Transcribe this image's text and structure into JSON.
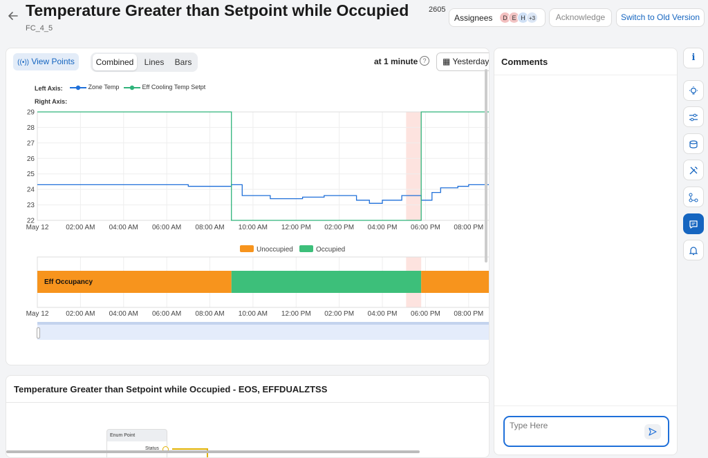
{
  "header": {
    "back_icon": "arrow-left-icon",
    "title": "Temperature Greater than Setpoint while Occupied",
    "title_suffix": "2605",
    "subtitle": "FC_4_5",
    "assignees_label": "Assignees",
    "avatars": [
      "D",
      "E",
      "H"
    ],
    "avatar_more": "+3",
    "acknowledge_label": "Acknowledge",
    "switch_label": "Switch to Old Version"
  },
  "toolbar": {
    "view_points_label": "View Points",
    "tabs": [
      "Combined",
      "Lines",
      "Bars"
    ],
    "active_tab": "Combined",
    "interval_label": "at 1 minute",
    "date_label": "Yesterday"
  },
  "chart_labels": {
    "left_axis": "Left Axis:",
    "right_axis": "Right Axis:",
    "series_names": [
      "Zone Temp",
      "Eff Cooling Temp Setpt"
    ],
    "occupancy_legend": [
      "Unoccupied",
      "Occupied"
    ],
    "occupancy_row_label": "Eff Occupancy"
  },
  "colors": {
    "zone_temp": "#1e6fd9",
    "setpoint": "#2fb37a",
    "unoccupied": "#f7941d",
    "occupied": "#3dbf7a",
    "accent": "#1565c0",
    "highlight": "#fde3df"
  },
  "chart_data": [
    {
      "type": "line",
      "x_ticks": [
        "May 12",
        "02:00 AM",
        "04:00 AM",
        "06:00 AM",
        "08:00 AM",
        "10:00 AM",
        "12:00 PM",
        "02:00 PM",
        "04:00 PM",
        "06:00 PM",
        "08:00 PM"
      ],
      "ylim": [
        22,
        29
      ],
      "y_ticks": [
        22,
        23,
        24,
        25,
        26,
        27,
        28,
        29
      ],
      "xlim_hours": [
        0,
        21
      ],
      "series": [
        {
          "name": "Zone Temp",
          "points": [
            [
              0,
              24.3
            ],
            [
              7,
              24.3
            ],
            [
              7,
              24.2
            ],
            [
              9,
              24.2
            ],
            [
              9,
              24.3
            ],
            [
              9.5,
              24.3
            ],
            [
              9.5,
              23.6
            ],
            [
              10.8,
              23.6
            ],
            [
              10.8,
              23.4
            ],
            [
              12.3,
              23.4
            ],
            [
              12.3,
              23.5
            ],
            [
              13.3,
              23.5
            ],
            [
              13.3,
              23.6
            ],
            [
              14.8,
              23.6
            ],
            [
              14.8,
              23.3
            ],
            [
              15.4,
              23.3
            ],
            [
              15.4,
              23.1
            ],
            [
              16.0,
              23.1
            ],
            [
              16.0,
              23.3
            ],
            [
              16.9,
              23.3
            ],
            [
              16.9,
              23.6
            ],
            [
              17.8,
              23.6
            ],
            [
              17.8,
              23.3
            ],
            [
              18.3,
              23.3
            ],
            [
              18.3,
              23.8
            ],
            [
              18.7,
              23.8
            ],
            [
              18.7,
              24.1
            ],
            [
              19.5,
              24.1
            ],
            [
              19.5,
              24.2
            ],
            [
              20.0,
              24.2
            ],
            [
              20.0,
              24.3
            ],
            [
              21,
              24.3
            ]
          ]
        },
        {
          "name": "Eff Cooling Temp Setpt",
          "points": [
            [
              0,
              29
            ],
            [
              9,
              29
            ],
            [
              9,
              22
            ],
            [
              17.8,
              22
            ],
            [
              17.8,
              29
            ],
            [
              21,
              29
            ]
          ]
        }
      ],
      "highlight_range_hours": [
        17.1,
        17.8
      ],
      "grid": true,
      "legend": "top-left"
    },
    {
      "type": "bar",
      "series_name": "Eff Occupancy",
      "segments": [
        {
          "state": "Unoccupied",
          "start_hour": 0,
          "end_hour": 9
        },
        {
          "state": "Occupied",
          "start_hour": 9,
          "end_hour": 17.8
        },
        {
          "state": "Unoccupied",
          "start_hour": 17.8,
          "end_hour": 21
        }
      ],
      "legend": "top-center"
    }
  ],
  "diagram": {
    "title": "Temperature Greater than Setpoint while Occupied - EOS, EFFDUALZTSS",
    "node_title": "Enum Point",
    "node_port": "Status"
  },
  "comments": {
    "title": "Comments",
    "placeholder": "Type Here",
    "send_icon": "send-icon"
  },
  "side_icons": [
    "info-icon",
    "lightbulb-icon",
    "sliders-icon",
    "database-icon",
    "tools-icon",
    "workflow-icon",
    "comment-icon",
    "bell-icon"
  ],
  "active_side_icon": "comment-icon"
}
